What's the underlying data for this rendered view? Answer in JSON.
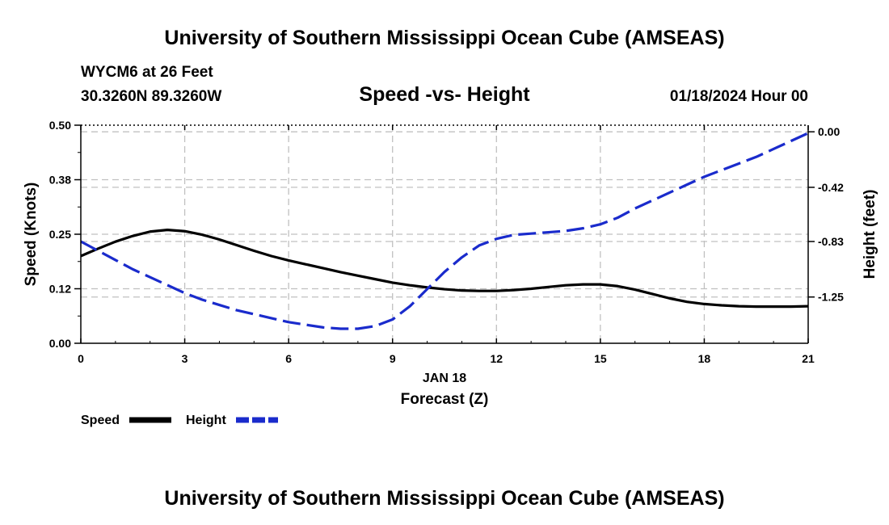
{
  "header": {
    "top_title": "University of Southern Mississippi Ocean Cube (AMSEAS)",
    "bottom_title": "University of Southern Mississippi Ocean Cube (AMSEAS)",
    "station_line": "WYCM6 at 26 Feet",
    "coords_line": "30.3260N  89.3260W",
    "date_line": "01/18/2024 Hour 00"
  },
  "chart_data": {
    "type": "line",
    "title": "Speed -vs- Height",
    "xlabel": "Forecast (Z)",
    "xsublabel": "JAN 18",
    "ylabel": "Speed (Knots)",
    "y2label": "Height (feet)",
    "xlim": [
      0,
      21
    ],
    "ylim": [
      0,
      0.5
    ],
    "y2lim": [
      -1.6,
      0.05
    ],
    "grid": true,
    "x_ticks": [
      0,
      3,
      6,
      9,
      12,
      15,
      18,
      21
    ],
    "x_tick_labels": [
      "0",
      "3",
      "6",
      "9",
      "12",
      "15",
      "18",
      "21"
    ],
    "y_ticks": [
      0,
      0.125,
      0.25,
      0.375,
      0.5
    ],
    "y_tick_labels": [
      "0.00",
      "0.12",
      "0.25",
      "0.38",
      "0.50"
    ],
    "y2_ticks": [
      0,
      -0.42,
      -0.83,
      -1.25
    ],
    "y2_tick_labels": [
      "0.00",
      "-0.42",
      "-0.83",
      "-1.25"
    ],
    "series": [
      {
        "name": "Speed",
        "axis": "left",
        "color": "#000000",
        "style": "solid",
        "x": [
          0,
          0.5,
          1,
          1.5,
          2,
          2.5,
          3,
          3.5,
          4,
          4.5,
          5,
          5.5,
          6,
          6.5,
          7,
          7.5,
          8,
          8.5,
          9,
          9.5,
          10,
          10.5,
          11,
          11.5,
          12,
          12.5,
          13,
          13.5,
          14,
          14.5,
          15,
          15.5,
          16,
          16.5,
          17,
          17.5,
          18,
          18.5,
          19,
          19.5,
          20,
          20.5,
          21
        ],
        "values": [
          0.2,
          0.217,
          0.233,
          0.246,
          0.256,
          0.26,
          0.257,
          0.249,
          0.238,
          0.225,
          0.212,
          0.2,
          0.19,
          0.181,
          0.172,
          0.163,
          0.155,
          0.147,
          0.139,
          0.133,
          0.128,
          0.124,
          0.121,
          0.12,
          0.12,
          0.122,
          0.125,
          0.129,
          0.133,
          0.135,
          0.135,
          0.131,
          0.123,
          0.113,
          0.103,
          0.095,
          0.09,
          0.087,
          0.085,
          0.084,
          0.084,
          0.084,
          0.085
        ]
      },
      {
        "name": "Height",
        "axis": "right",
        "color": "#1a2bcc",
        "style": "dashed",
        "x": [
          0,
          0.5,
          1,
          1.5,
          2,
          2.5,
          3,
          3.5,
          4,
          4.5,
          5,
          5.5,
          6,
          6.5,
          7,
          7.5,
          8,
          8.5,
          9,
          9.5,
          10,
          10.5,
          11,
          11.5,
          12,
          12.5,
          13,
          13.5,
          14,
          14.5,
          15,
          15.5,
          16,
          16.5,
          17,
          17.5,
          18,
          18.5,
          19,
          19.5,
          20,
          20.5,
          21
        ],
        "values": [
          -0.83,
          -0.9,
          -0.97,
          -1.04,
          -1.1,
          -1.16,
          -1.22,
          -1.27,
          -1.31,
          -1.35,
          -1.38,
          -1.41,
          -1.44,
          -1.46,
          -1.48,
          -1.49,
          -1.49,
          -1.47,
          -1.42,
          -1.32,
          -1.19,
          -1.06,
          -0.95,
          -0.86,
          -0.81,
          -0.78,
          -0.77,
          -0.76,
          -0.75,
          -0.73,
          -0.7,
          -0.65,
          -0.58,
          -0.52,
          -0.46,
          -0.4,
          -0.34,
          -0.29,
          -0.24,
          -0.19,
          -0.13,
          -0.07,
          -0.01
        ]
      }
    ],
    "legend_position": "bottom-left"
  },
  "legend": {
    "items": [
      {
        "label": "Speed",
        "color": "#000000",
        "style": "solid"
      },
      {
        "label": "Height",
        "color": "#1a2bcc",
        "style": "dashed"
      }
    ]
  }
}
